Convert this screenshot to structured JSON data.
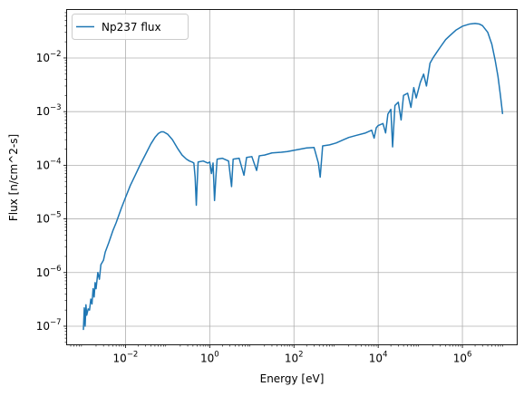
{
  "chart_data": {
    "type": "line",
    "title": "",
    "xlabel": "Energy [eV]",
    "ylabel": "Flux [n/cm^2-s]",
    "xscale": "log",
    "yscale": "log",
    "xlim": [
      0.0004,
      20000000
    ],
    "ylim": [
      4.5e-08,
      0.08
    ],
    "grid": true,
    "legend_position": "top-left",
    "series_color": "#1f77b4",
    "x_ticks": [
      {
        "value": 0.01,
        "base": "10",
        "exp": "−2"
      },
      {
        "value": 1,
        "base": "10",
        "exp": "0"
      },
      {
        "value": 100,
        "base": "10",
        "exp": "2"
      },
      {
        "value": 10000,
        "base": "10",
        "exp": "4"
      },
      {
        "value": 1000000,
        "base": "10",
        "exp": "6"
      }
    ],
    "y_ticks": [
      {
        "value": 1e-07,
        "base": "10",
        "exp": "−7"
      },
      {
        "value": 1e-06,
        "base": "10",
        "exp": "−6"
      },
      {
        "value": 1e-05,
        "base": "10",
        "exp": "−5"
      },
      {
        "value": 0.0001,
        "base": "10",
        "exp": "−4"
      },
      {
        "value": 0.001,
        "base": "10",
        "exp": "−3"
      },
      {
        "value": 0.01,
        "base": "10",
        "exp": "−2"
      }
    ],
    "series": [
      {
        "name": "Np237 flux",
        "points": [
          [
            0.001,
            8.5e-08
          ],
          [
            0.00105,
            2.2e-07
          ],
          [
            0.0011,
            1e-07
          ],
          [
            0.00115,
            2.5e-07
          ],
          [
            0.0012,
            1.6e-07
          ],
          [
            0.0013,
            2.1e-07
          ],
          [
            0.0014,
            2e-07
          ],
          [
            0.0015,
            3.2e-07
          ],
          [
            0.0016,
            2.6e-07
          ],
          [
            0.0017,
            5e-07
          ],
          [
            0.0018,
            3.5e-07
          ],
          [
            0.0019,
            6.5e-07
          ],
          [
            0.002,
            5e-07
          ],
          [
            0.0022,
            1e-06
          ],
          [
            0.0024,
            7.5e-07
          ],
          [
            0.0026,
            1.4e-06
          ],
          [
            0.003,
            1.7e-06
          ],
          [
            0.0033,
            2.4e-06
          ],
          [
            0.004,
            3.6e-06
          ],
          [
            0.005,
            6e-06
          ],
          [
            0.006,
            8.5e-06
          ],
          [
            0.008,
            1.6e-05
          ],
          [
            0.01,
            2.5e-05
          ],
          [
            0.013,
            4.2e-05
          ],
          [
            0.017,
            6.5e-05
          ],
          [
            0.022,
            0.0001
          ],
          [
            0.03,
            0.00016
          ],
          [
            0.04,
            0.00025
          ],
          [
            0.05,
            0.00033
          ],
          [
            0.06,
            0.00039
          ],
          [
            0.07,
            0.00042
          ],
          [
            0.08,
            0.00042
          ],
          [
            0.1,
            0.00038
          ],
          [
            0.13,
            0.0003
          ],
          [
            0.17,
            0.00021
          ],
          [
            0.22,
            0.000155
          ],
          [
            0.28,
            0.00013
          ],
          [
            0.33,
            0.00012
          ],
          [
            0.38,
            0.000115
          ],
          [
            0.42,
            0.00011
          ],
          [
            0.45,
            6e-05
          ],
          [
            0.48,
            1.8e-05
          ],
          [
            0.5,
            4e-05
          ],
          [
            0.53,
            0.000115
          ],
          [
            0.7,
            0.00012
          ],
          [
            0.9,
            0.00011
          ],
          [
            1.0,
            0.000115
          ],
          [
            1.1,
            7e-05
          ],
          [
            1.2,
            0.00011
          ],
          [
            1.3,
            2.2e-05
          ],
          [
            1.4,
            6e-05
          ],
          [
            1.5,
            0.00013
          ],
          [
            2.0,
            0.000135
          ],
          [
            2.8,
            0.00012
          ],
          [
            3.3,
            4e-05
          ],
          [
            3.6,
            0.00013
          ],
          [
            5.0,
            0.000135
          ],
          [
            6.5,
            6.5e-05
          ],
          [
            7.5,
            0.00014
          ],
          [
            10,
            0.000145
          ],
          [
            13,
            8e-05
          ],
          [
            15,
            0.00015
          ],
          [
            20,
            0.000155
          ],
          [
            30,
            0.00017
          ],
          [
            50,
            0.000175
          ],
          [
            70,
            0.00018
          ],
          [
            100,
            0.00019
          ],
          [
            200,
            0.00021
          ],
          [
            300,
            0.000215
          ],
          [
            380,
            0.00011
          ],
          [
            420,
            6e-05
          ],
          [
            480,
            0.00023
          ],
          [
            700,
            0.00024
          ],
          [
            1000,
            0.00026
          ],
          [
            2000,
            0.00033
          ],
          [
            3000,
            0.00036
          ],
          [
            5000,
            0.0004
          ],
          [
            7000,
            0.00045
          ],
          [
            8000,
            0.00032
          ],
          [
            9000,
            0.0005
          ],
          [
            10000,
            0.00055
          ],
          [
            13000,
            0.0006
          ],
          [
            15000,
            0.0004
          ],
          [
            17000,
            0.0009
          ],
          [
            20000,
            0.0011
          ],
          [
            22000,
            0.00022
          ],
          [
            25000,
            0.0013
          ],
          [
            30000,
            0.0015
          ],
          [
            35000,
            0.0007
          ],
          [
            40000,
            0.002
          ],
          [
            50000,
            0.0022
          ],
          [
            60000,
            0.0012
          ],
          [
            70000,
            0.0028
          ],
          [
            80000,
            0.0018
          ],
          [
            100000,
            0.0035
          ],
          [
            120000,
            0.005
          ],
          [
            140000,
            0.003
          ],
          [
            170000,
            0.008
          ],
          [
            200000,
            0.01
          ],
          [
            250000,
            0.013
          ],
          [
            300000,
            0.016
          ],
          [
            400000,
            0.022
          ],
          [
            500000,
            0.026
          ],
          [
            700000,
            0.033
          ],
          [
            1000000,
            0.039
          ],
          [
            1500000,
            0.043
          ],
          [
            2000000,
            0.044
          ],
          [
            2500000,
            0.043
          ],
          [
            3000000,
            0.04
          ],
          [
            4000000,
            0.03
          ],
          [
            5000000,
            0.018
          ],
          [
            6000000,
            0.009
          ],
          [
            7000000,
            0.0045
          ],
          [
            8000000,
            0.002
          ],
          [
            9000000,
            0.0009
          ]
        ]
      }
    ]
  }
}
